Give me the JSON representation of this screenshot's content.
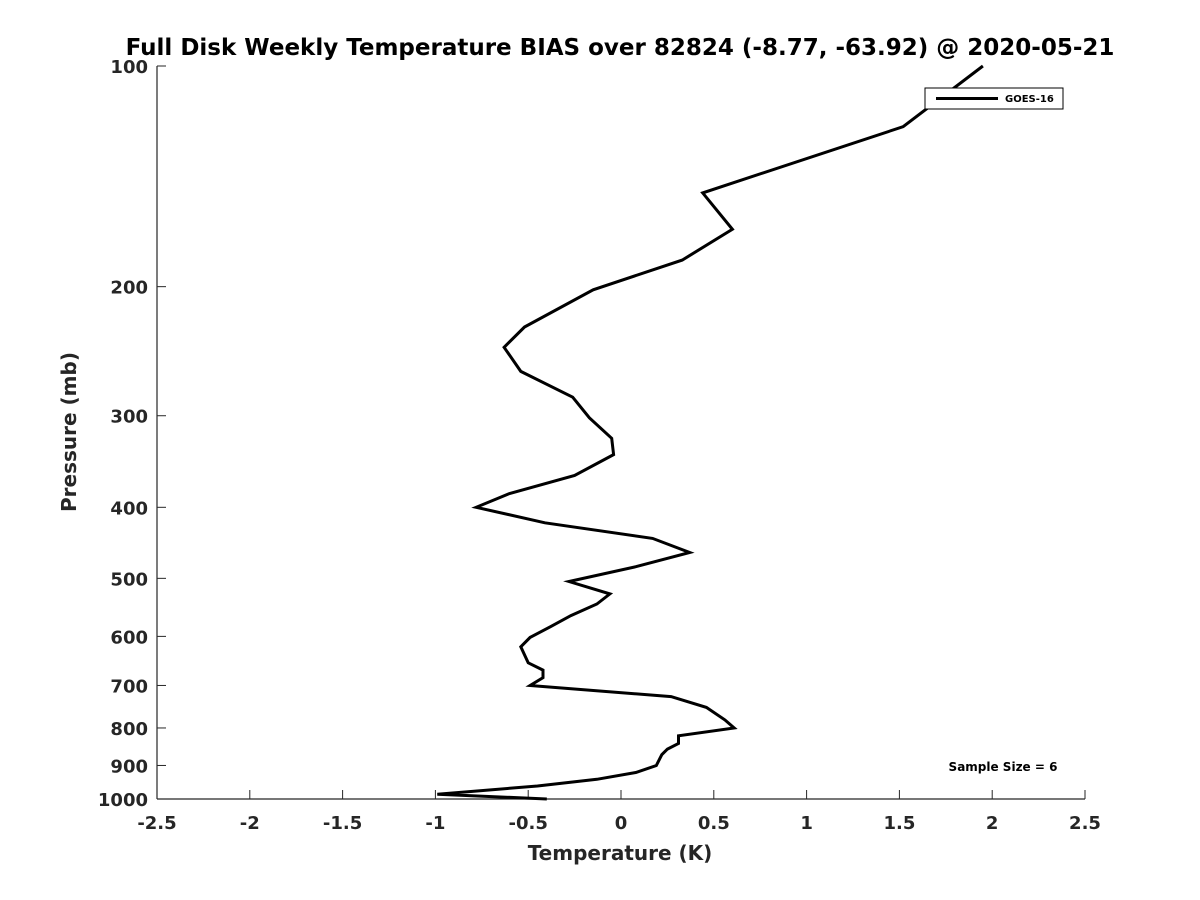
{
  "chart_data": {
    "type": "line",
    "title": "Full Disk Weekly Temperature BIAS over 82824 (-8.77, -63.92) @ 2020-05-21",
    "xlabel": "Temperature (K)",
    "ylabel": "Pressure (mb)",
    "xlim": [
      -2.5,
      2.5
    ],
    "ylim": [
      100,
      1000
    ],
    "yscale": "log",
    "y_reversed": true,
    "grid": false,
    "legend_position": "top-right",
    "x_ticks": [
      "-2.5",
      "-2",
      "-1.5",
      "-1",
      "-0.5",
      "0",
      "0.5",
      "1",
      "1.5",
      "2",
      "2.5"
    ],
    "y_ticks": [
      "100",
      "200",
      "300",
      "400",
      "500",
      "600",
      "700",
      "800",
      "900",
      "1000"
    ],
    "annotation": "Sample Size = 6",
    "series": [
      {
        "name": "GOES-16",
        "color": "#000000",
        "x": [
          1.95,
          1.52,
          0.44,
          0.6,
          0.33,
          -0.15,
          -0.52,
          -0.63,
          -0.54,
          -0.26,
          -0.17,
          -0.05,
          -0.04,
          -0.25,
          -0.6,
          -0.78,
          -0.41,
          0.17,
          0.37,
          0.08,
          -0.28,
          -0.06,
          -0.13,
          -0.27,
          -0.38,
          -0.49,
          -0.54,
          -0.5,
          -0.42,
          -0.42,
          -0.49,
          0.27,
          0.46,
          0.56,
          0.61,
          0.31,
          0.31,
          0.25,
          0.22,
          0.19,
          0.08,
          -0.13,
          -0.45,
          -0.99,
          -0.4
        ],
        "y": [
          100,
          121,
          149,
          167,
          184,
          202,
          227,
          242,
          261,
          283,
          302,
          322,
          339,
          362,
          383,
          400,
          420,
          441,
          461,
          482,
          505,
          525,
          542,
          562,
          582,
          602,
          620,
          652,
          667,
          683,
          700,
          725,
          750,
          780,
          800,
          820,
          840,
          855,
          870,
          900,
          920,
          940,
          960,
          985,
          1000
        ]
      }
    ]
  }
}
